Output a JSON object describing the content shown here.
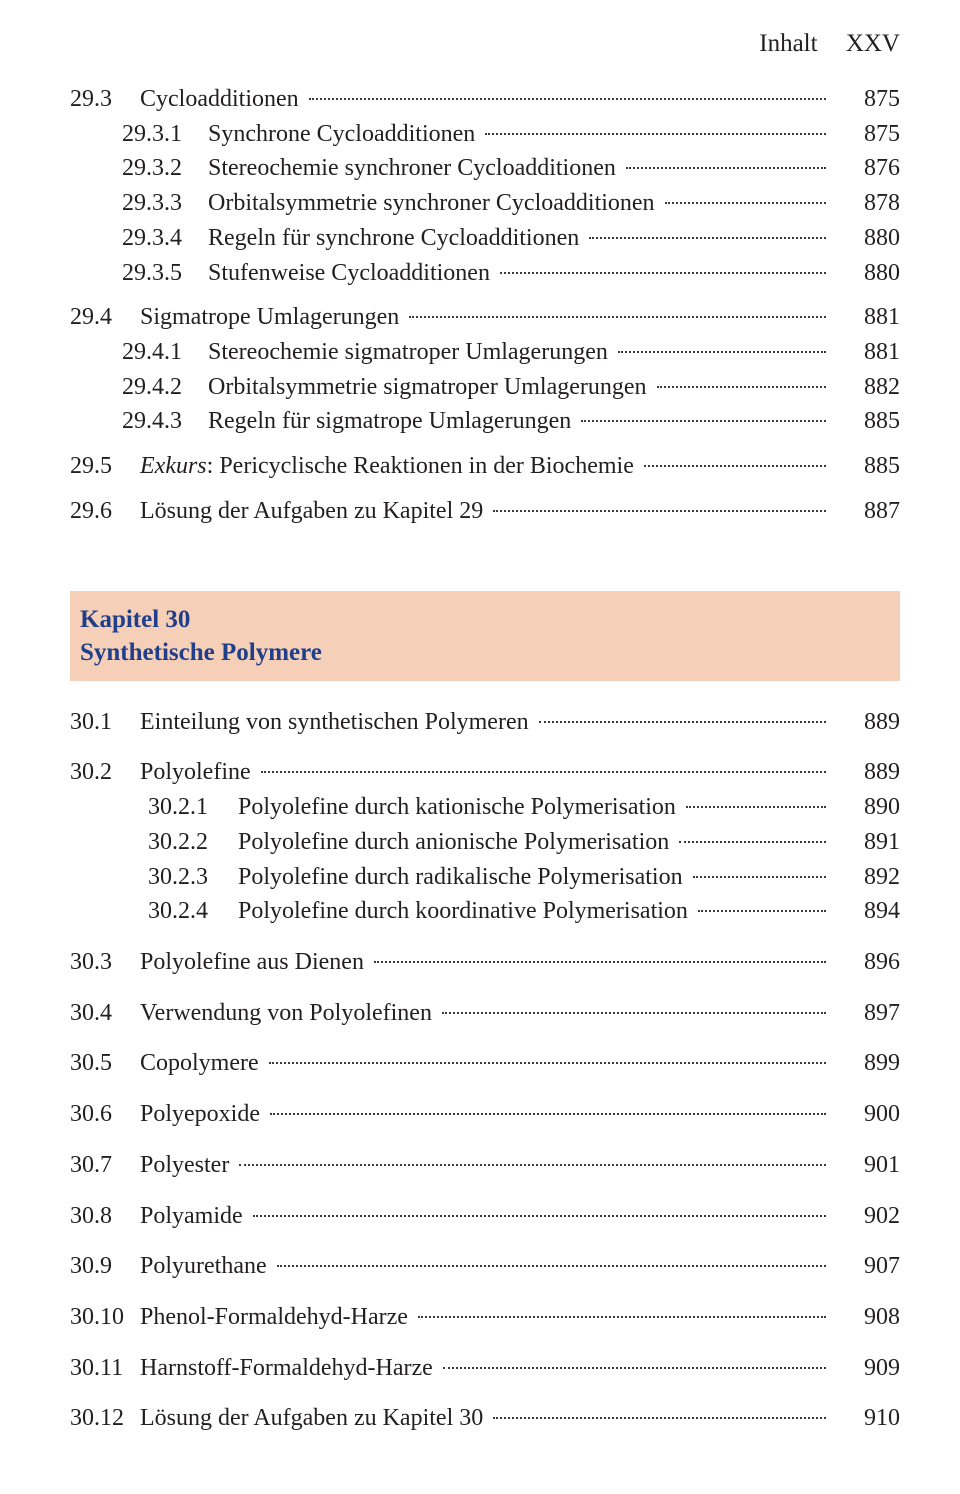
{
  "header": {
    "label": "Inhalt",
    "page": "XXV"
  },
  "chapter_band": {
    "line1": "Kapitel 30",
    "line2": "Synthetische Polymere",
    "bg": "#f6cfb9",
    "text_color": "#1f3f8a"
  },
  "toc": [
    {
      "n": "29.3",
      "t": "Cycloadditionen",
      "p": "875",
      "lvl": 0,
      "gap": ""
    },
    {
      "n": "29.3.1",
      "t": "Synchrone Cycloadditionen",
      "p": "875",
      "lvl": 1
    },
    {
      "n": "29.3.2",
      "t": "Stereochemie synchroner Cycloadditionen",
      "p": "876",
      "lvl": 1
    },
    {
      "n": "29.3.3",
      "t": "Orbitalsymmetrie synchroner Cycloadditionen",
      "p": "878",
      "lvl": 1
    },
    {
      "n": "29.3.4",
      "t": "Regeln für synchrone Cycloadditionen",
      "p": "880",
      "lvl": 1
    },
    {
      "n": "29.3.5",
      "t": "Stufenweise Cycloadditionen",
      "p": "880",
      "lvl": 1
    },
    {
      "n": "29.4",
      "t": "Sigmatrope Umlagerungen",
      "p": "881",
      "lvl": 0,
      "gap": "block-gap"
    },
    {
      "n": "29.4.1",
      "t": "Stereochemie sigmatroper Umlagerungen",
      "p": "881",
      "lvl": 1
    },
    {
      "n": "29.4.2",
      "t": "Orbitalsymmetrie sigmatroper Umlagerungen",
      "p": "882",
      "lvl": 1
    },
    {
      "n": "29.4.3",
      "t": "Regeln für sigmatrope Umlagerungen",
      "p": "885",
      "lvl": 1
    },
    {
      "n": "29.5",
      "html": "<span class='ital'>Exkurs</span>: Pericyclische Reaktionen in der Biochemie",
      "p": "885",
      "lvl": 0,
      "gap": "block-gap"
    },
    {
      "n": "29.6",
      "t": "Lösung der Aufgaben zu Kapitel 29",
      "p": "887",
      "lvl": 0,
      "gap": "block-gap"
    }
  ],
  "toc2": [
    {
      "n": "30.1",
      "t": "Einteilung von synthetischen Polymeren",
      "p": "889",
      "lvl": 0
    },
    {
      "n": "30.2",
      "t": "Polyolefine",
      "p": "889",
      "lvl": 0,
      "gap": "block-gap-l"
    },
    {
      "n": "30.2.1",
      "t": "Polyolefine durch kationische Polymerisation",
      "p": "890",
      "lvl": 2
    },
    {
      "n": "30.2.2",
      "t": "Polyolefine durch anionische Polymerisation",
      "p": "891",
      "lvl": 2
    },
    {
      "n": "30.2.3",
      "t": "Polyolefine durch radikalische Polymerisation",
      "p": "892",
      "lvl": 2
    },
    {
      "n": "30.2.4",
      "t": "Polyolefine durch koordinative Polymerisation",
      "p": "894",
      "lvl": 2
    },
    {
      "n": "30.3",
      "t": "Polyolefine aus Dienen",
      "p": "896",
      "lvl": 0,
      "gap": "block-gap-l"
    },
    {
      "n": "30.4",
      "t": "Verwendung von Polyolefinen",
      "p": "897",
      "lvl": 0,
      "gap": "block-gap-l"
    },
    {
      "n": "30.5",
      "t": "Copolymere",
      "p": "899",
      "lvl": 0,
      "gap": "block-gap-l"
    },
    {
      "n": "30.6",
      "t": "Polyepoxide",
      "p": "900",
      "lvl": 0,
      "gap": "block-gap-l"
    },
    {
      "n": "30.7",
      "t": "Polyester",
      "p": "901",
      "lvl": 0,
      "gap": "block-gap-l"
    },
    {
      "n": "30.8",
      "t": "Polyamide",
      "p": "902",
      "lvl": 0,
      "gap": "block-gap-l"
    },
    {
      "n": "30.9",
      "t": "Polyurethane",
      "p": "907",
      "lvl": 0,
      "gap": "block-gap-l"
    },
    {
      "n": "30.10",
      "t": "Phenol-Formaldehyd-Harze",
      "p": "908",
      "lvl": 0,
      "gap": "block-gap-l"
    },
    {
      "n": "30.11",
      "t": "Harnstoff-Formaldehyd-Harze",
      "p": "909",
      "lvl": 0,
      "gap": "block-gap-l"
    },
    {
      "n": "30.12",
      "t": "Lösung der Aufgaben zu Kapitel 30",
      "p": "910",
      "lvl": 0,
      "gap": "block-gap-l"
    }
  ]
}
